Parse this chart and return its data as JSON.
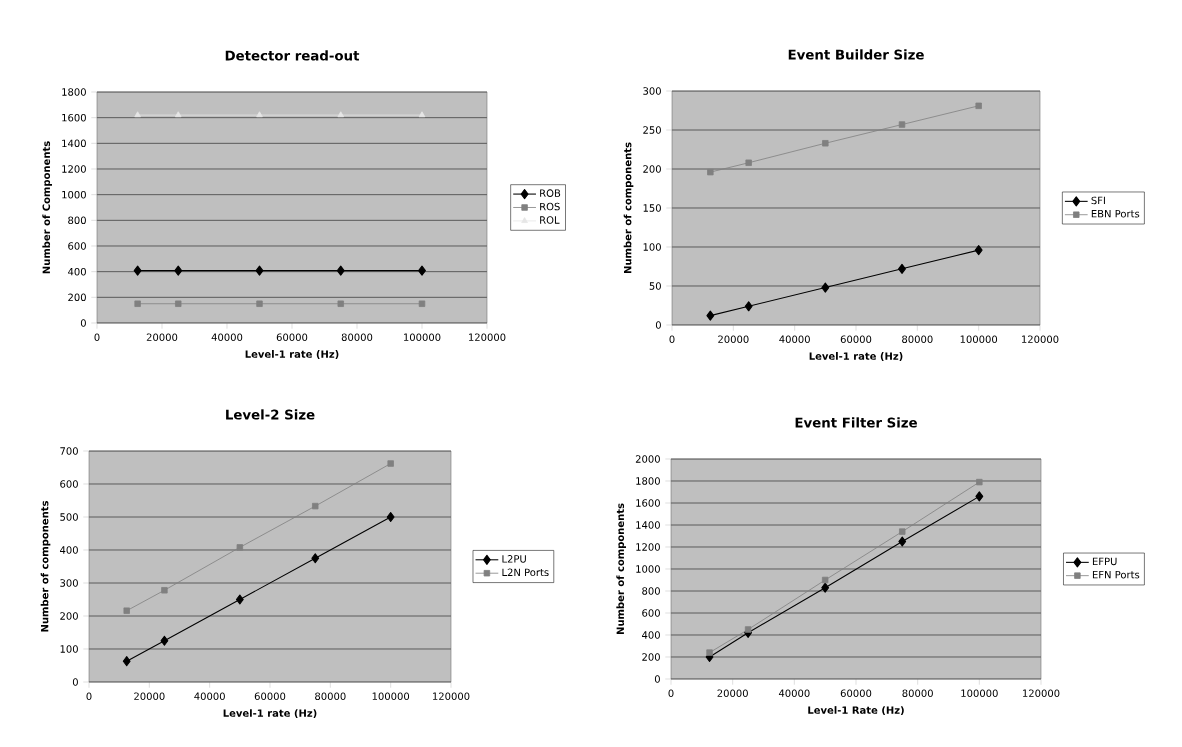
{
  "chart_data": [
    {
      "type": "line",
      "title": "Detector read-out",
      "xlabel": "Level-1 rate (Hz)",
      "ylabel": "Number of Components",
      "x": [
        12500,
        25000,
        50000,
        75000,
        100000
      ],
      "xlim": [
        0,
        120000
      ],
      "xticks": [
        0,
        20000,
        40000,
        60000,
        80000,
        100000,
        120000
      ],
      "ylim": [
        0,
        1800
      ],
      "yticks": [
        0,
        200,
        400,
        600,
        800,
        1000,
        1200,
        1400,
        1600,
        1800
      ],
      "grid": "y",
      "legend": "right",
      "series": [
        {
          "name": "ROB",
          "color": "#000000",
          "marker": "diamond",
          "values": [
            408,
            408,
            408,
            408,
            408
          ]
        },
        {
          "name": "ROS",
          "color": "#808080",
          "marker": "square",
          "values": [
            150,
            150,
            150,
            150,
            150
          ]
        },
        {
          "name": "ROL",
          "color": "#e6e6e6",
          "marker": "triangle",
          "values": [
            1620,
            1620,
            1620,
            1620,
            1620
          ]
        }
      ]
    },
    {
      "type": "line",
      "title": "Event Builder Size",
      "xlabel": "Level-1 rate (Hz)",
      "ylabel": "Number of components",
      "x": [
        12500,
        25000,
        50000,
        75000,
        100000
      ],
      "xlim": [
        0,
        120000
      ],
      "xticks": [
        0,
        20000,
        40000,
        60000,
        80000,
        100000,
        120000
      ],
      "ylim": [
        0,
        300
      ],
      "yticks": [
        0,
        50,
        100,
        150,
        200,
        250,
        300
      ],
      "grid": "y",
      "legend": "right",
      "series": [
        {
          "name": "SFI",
          "color": "#000000",
          "marker": "diamond",
          "values": [
            12,
            24,
            48,
            72,
            96
          ]
        },
        {
          "name": "EBN Ports",
          "color": "#808080",
          "marker": "square",
          "values": [
            196,
            208,
            233,
            257,
            281
          ]
        }
      ]
    },
    {
      "type": "line",
      "title": "Level-2 Size",
      "xlabel": "Level-1 rate (Hz)",
      "ylabel": "Number of components",
      "x": [
        12500,
        25000,
        50000,
        75000,
        100000
      ],
      "xlim": [
        0,
        120000
      ],
      "xticks": [
        0,
        20000,
        40000,
        60000,
        80000,
        100000,
        120000
      ],
      "ylim": [
        0,
        700
      ],
      "yticks": [
        0,
        100,
        200,
        300,
        400,
        500,
        600,
        700
      ],
      "grid": "y",
      "legend": "right",
      "series": [
        {
          "name": "L2PU",
          "color": "#000000",
          "marker": "diamond",
          "values": [
            63,
            125,
            250,
            375,
            500
          ]
        },
        {
          "name": "L2N Ports",
          "color": "#808080",
          "marker": "square",
          "values": [
            216,
            278,
            408,
            533,
            662
          ]
        }
      ]
    },
    {
      "type": "line",
      "title": "Event Filter Size",
      "xlabel": "Level-1 Rate (Hz)",
      "ylabel": "Number of components",
      "x": [
        12500,
        25000,
        50000,
        75000,
        100000
      ],
      "xlim": [
        0,
        120000
      ],
      "xticks": [
        0,
        20000,
        40000,
        60000,
        80000,
        100000,
        120000
      ],
      "ylim": [
        0,
        2000
      ],
      "yticks": [
        0,
        200,
        400,
        600,
        800,
        1000,
        1200,
        1400,
        1600,
        1800,
        2000
      ],
      "grid": "y",
      "legend": "right",
      "series": [
        {
          "name": "EFPU",
          "color": "#000000",
          "marker": "diamond",
          "values": [
            200,
            420,
            830,
            1250,
            1660
          ]
        },
        {
          "name": "EFN Ports",
          "color": "#808080",
          "marker": "square",
          "values": [
            240,
            450,
            900,
            1340,
            1790
          ]
        }
      ]
    }
  ]
}
